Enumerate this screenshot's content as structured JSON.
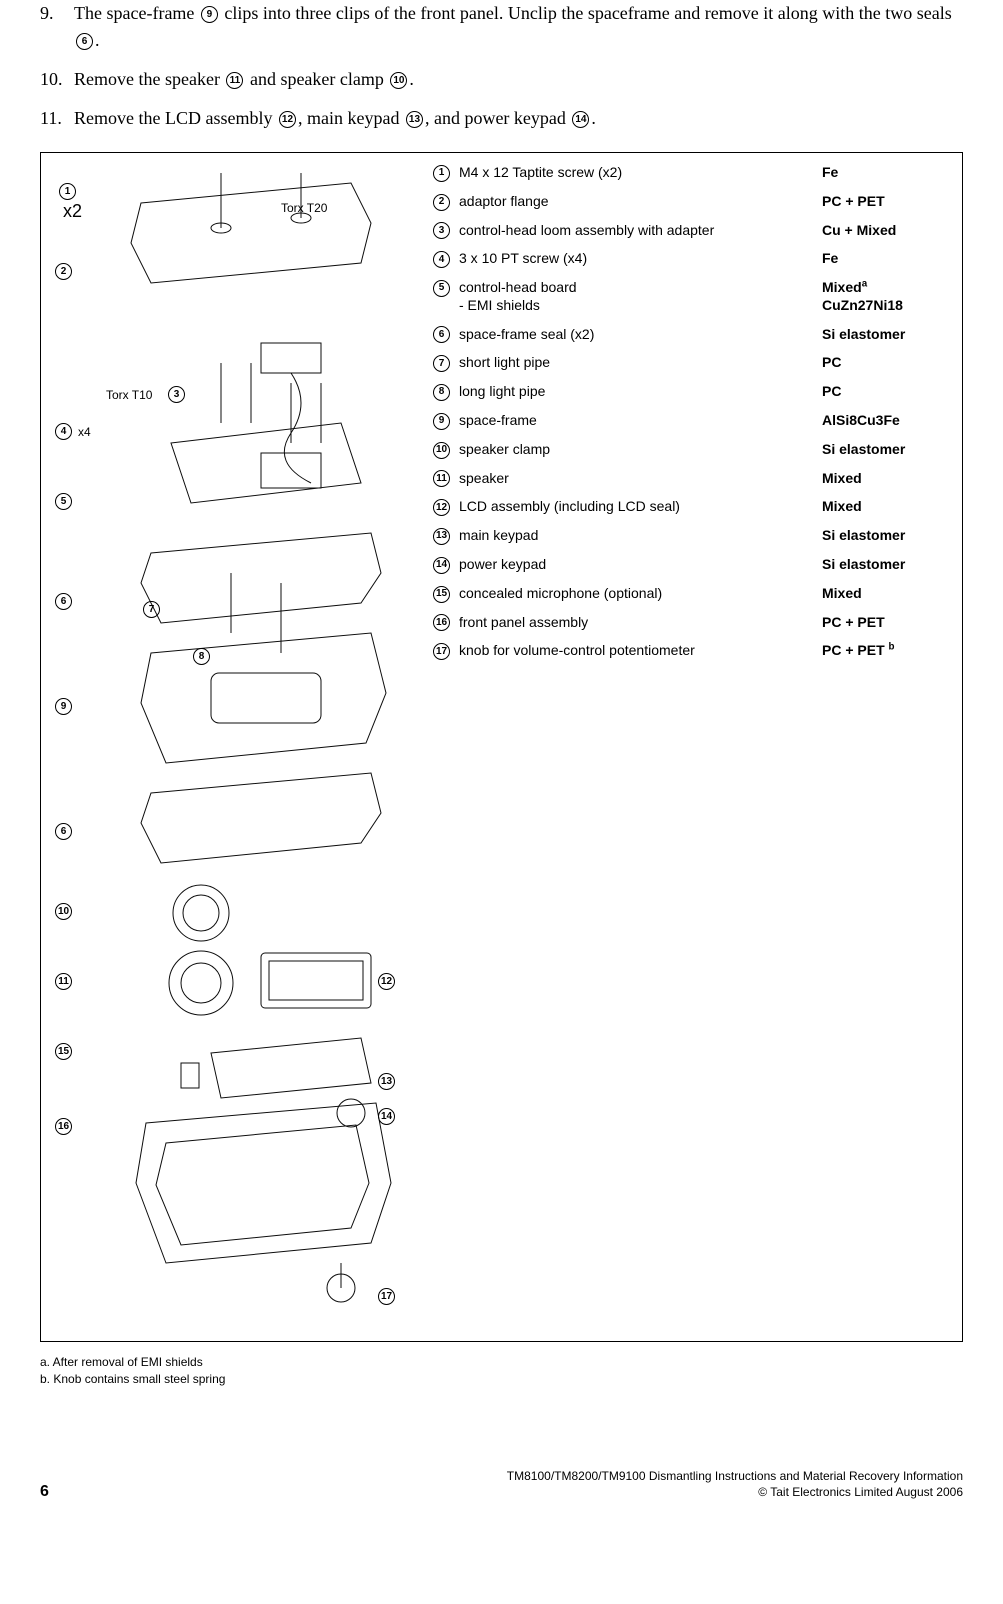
{
  "steps": [
    {
      "num": "9.",
      "text_parts": [
        "The space-frame ",
        {
          "circ": "9"
        },
        " clips into three clips of the front panel. Unclip the spaceframe and remove it along with the two seals ",
        {
          "circ": "6"
        },
        "."
      ]
    },
    {
      "num": "10.",
      "text_parts": [
        "Remove the speaker ",
        {
          "circ": "11"
        },
        " and speaker clamp ",
        {
          "circ": "10"
        },
        "."
      ]
    },
    {
      "num": "11.",
      "text_parts": [
        "Remove the LCD assembly ",
        {
          "circ": "12"
        },
        ", main keypad ",
        {
          "circ": "13"
        },
        ", and power keypad ",
        {
          "circ": "14"
        },
        "."
      ]
    }
  ],
  "diagram_labels": {
    "x2": "x2",
    "torx_t20": "Torx T20",
    "torx_t10": "Torx T10",
    "x4": "x4"
  },
  "diagram_callouts_left": [
    "1",
    "2",
    "3",
    "4",
    "5",
    "6",
    "7",
    "8",
    "9",
    "6",
    "10",
    "11",
    "15",
    "16"
  ],
  "diagram_callouts_right": [
    "12",
    "13",
    "14",
    "17"
  ],
  "parts": [
    {
      "n": "1",
      "desc": "M4 x 12 Taptite screw (x2)",
      "mat": "Fe"
    },
    {
      "n": "2",
      "desc": "adaptor flange",
      "mat": "PC + PET"
    },
    {
      "n": "3",
      "desc": "control-head loom assembly with adapter",
      "mat": "Cu + Mixed"
    },
    {
      "n": "4",
      "desc": "3 x 10 PT screw (x4)",
      "mat": "Fe"
    },
    {
      "n": "5",
      "desc": "control-head board",
      "desc2": "- EMI shields",
      "mat": "Mixed",
      "mat_sup": "a",
      "mat2": "CuZn27Ni18"
    },
    {
      "n": "6",
      "desc": "space-frame seal (x2)",
      "mat": "Si elastomer"
    },
    {
      "n": "7",
      "desc": "short light pipe",
      "mat": "PC"
    },
    {
      "n": "8",
      "desc": "long light pipe",
      "mat": "PC"
    },
    {
      "n": "9",
      "desc": "space-frame",
      "mat": "AlSi8Cu3Fe"
    },
    {
      "n": "10",
      "desc": "speaker clamp",
      "mat": "Si elastomer"
    },
    {
      "n": "11",
      "desc": "speaker",
      "mat": "Mixed"
    },
    {
      "n": "12",
      "desc": "LCD assembly (including LCD seal)",
      "mat": "Mixed"
    },
    {
      "n": "13",
      "desc": "main keypad",
      "mat": "Si elastomer"
    },
    {
      "n": "14",
      "desc": "power keypad",
      "mat": "Si elastomer"
    },
    {
      "n": "15",
      "desc": "concealed microphone (optional)",
      "mat": "Mixed"
    },
    {
      "n": "16",
      "desc": "front panel assembly",
      "mat": "PC + PET"
    },
    {
      "n": "17",
      "desc": "knob for volume-control potentiometer",
      "mat": "PC + PET ",
      "mat_sup": "b"
    }
  ],
  "footnotes": [
    "a. After removal of EMI shields",
    "b. Knob contains small steel spring"
  ],
  "footer": {
    "page": "6",
    "title": "TM8100/TM8200/TM9100 Dismantling Instructions and Material Recovery Information",
    "copyright": "© Tait Electronics Limited August 2006"
  },
  "colors": {
    "text": "#000000",
    "bg": "#ffffff",
    "border": "#000000"
  }
}
